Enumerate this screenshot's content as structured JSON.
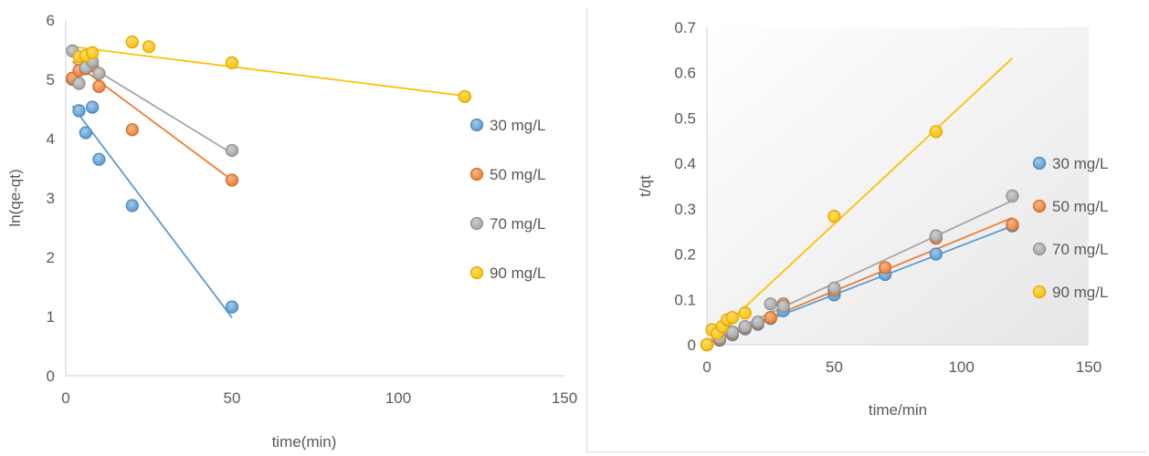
{
  "colors": {
    "30": "#5b9bd5",
    "50": "#ed7d31",
    "70": "#a5a5a5",
    "90": "#ffc000"
  },
  "chart_data": [
    {
      "type": "scatter",
      "title": "",
      "xlabel": "time(min)",
      "ylabel": "ln(qe-qt)",
      "xlim": [
        0,
        150
      ],
      "ylim": [
        0,
        6
      ],
      "xticks": [
        0,
        50,
        100,
        150
      ],
      "yticks": [
        0,
        1,
        2,
        3,
        4,
        5,
        6
      ],
      "grid": false,
      "legend_position": "right",
      "series": [
        {
          "name": "30 mg/L",
          "color_key": "30",
          "x": [
            2,
            4,
            6,
            8,
            10,
            20,
            50
          ],
          "y": [
            5.0,
            4.47,
            4.1,
            4.53,
            3.65,
            2.87,
            1.16
          ],
          "trendline": [
            [
              2,
              4.55
            ],
            [
              50,
              0.98
            ]
          ]
        },
        {
          "name": "50 mg/L",
          "color_key": "50",
          "x": [
            2,
            4,
            6,
            8,
            10,
            20,
            50
          ],
          "y": [
            5.02,
            5.15,
            5.18,
            5.23,
            4.88,
            4.15,
            3.3
          ],
          "trendline": [
            [
              2,
              5.3
            ],
            [
              50,
              3.3
            ]
          ]
        },
        {
          "name": "70 mg/L",
          "color_key": "70",
          "x": [
            2,
            4,
            6,
            8,
            10,
            50
          ],
          "y": [
            5.48,
            4.93,
            5.2,
            5.3,
            5.1,
            3.8
          ],
          "trendline": [
            [
              2,
              5.4
            ],
            [
              50,
              3.75
            ]
          ]
        },
        {
          "name": "90 mg/L",
          "color_key": "90",
          "x": [
            4,
            6,
            8,
            20,
            25,
            50,
            120
          ],
          "y": [
            5.38,
            5.4,
            5.45,
            5.63,
            5.55,
            5.28,
            4.71
          ],
          "trendline": [
            [
              2,
              5.55
            ],
            [
              120,
              4.72
            ]
          ]
        }
      ]
    },
    {
      "type": "scatter",
      "title": "",
      "xlabel": "time/min",
      "ylabel": "t/qt",
      "xlim": [
        0,
        150
      ],
      "ylim": [
        0,
        0.7
      ],
      "xticks": [
        0,
        50,
        100,
        150
      ],
      "yticks": [
        0,
        0.1,
        0.2,
        0.3,
        0.4,
        0.5,
        0.6,
        0.7
      ],
      "grid": false,
      "legend_position": "right",
      "series": [
        {
          "name": "30 mg/L",
          "color_key": "30",
          "x": [
            0,
            5,
            10,
            15,
            20,
            25,
            30,
            50,
            70,
            90,
            120
          ],
          "y": [
            0,
            0.01,
            0.022,
            0.035,
            0.045,
            0.058,
            0.075,
            0.11,
            0.155,
            0.2,
            0.262
          ],
          "trendline": [
            [
              0,
              0.002
            ],
            [
              120,
              0.262
            ]
          ]
        },
        {
          "name": "50 mg/L",
          "color_key": "50",
          "x": [
            0,
            5,
            10,
            15,
            20,
            25,
            30,
            50,
            70,
            90,
            120
          ],
          "y": [
            0,
            0.012,
            0.025,
            0.038,
            0.048,
            0.06,
            0.09,
            0.12,
            0.17,
            0.235,
            0.265
          ],
          "trendline": [
            [
              0,
              0.003
            ],
            [
              120,
              0.28
            ]
          ]
        },
        {
          "name": "70 mg/L",
          "color_key": "70",
          "x": [
            0,
            5,
            10,
            15,
            20,
            25,
            30,
            50,
            90,
            120
          ],
          "y": [
            0,
            0.015,
            0.028,
            0.04,
            0.05,
            0.09,
            0.085,
            0.125,
            0.24,
            0.328
          ],
          "trendline": [
            [
              0,
              0.005
            ],
            [
              120,
              0.318
            ]
          ]
        },
        {
          "name": "90 mg/L",
          "color_key": "90",
          "x": [
            0,
            2,
            4,
            6,
            8,
            10,
            15,
            50,
            90
          ],
          "y": [
            0,
            0.033,
            0.025,
            0.04,
            0.055,
            0.06,
            0.07,
            0.283,
            0.47
          ],
          "trendline": [
            [
              0,
              0.005
            ],
            [
              120,
              0.632
            ]
          ]
        }
      ]
    }
  ]
}
